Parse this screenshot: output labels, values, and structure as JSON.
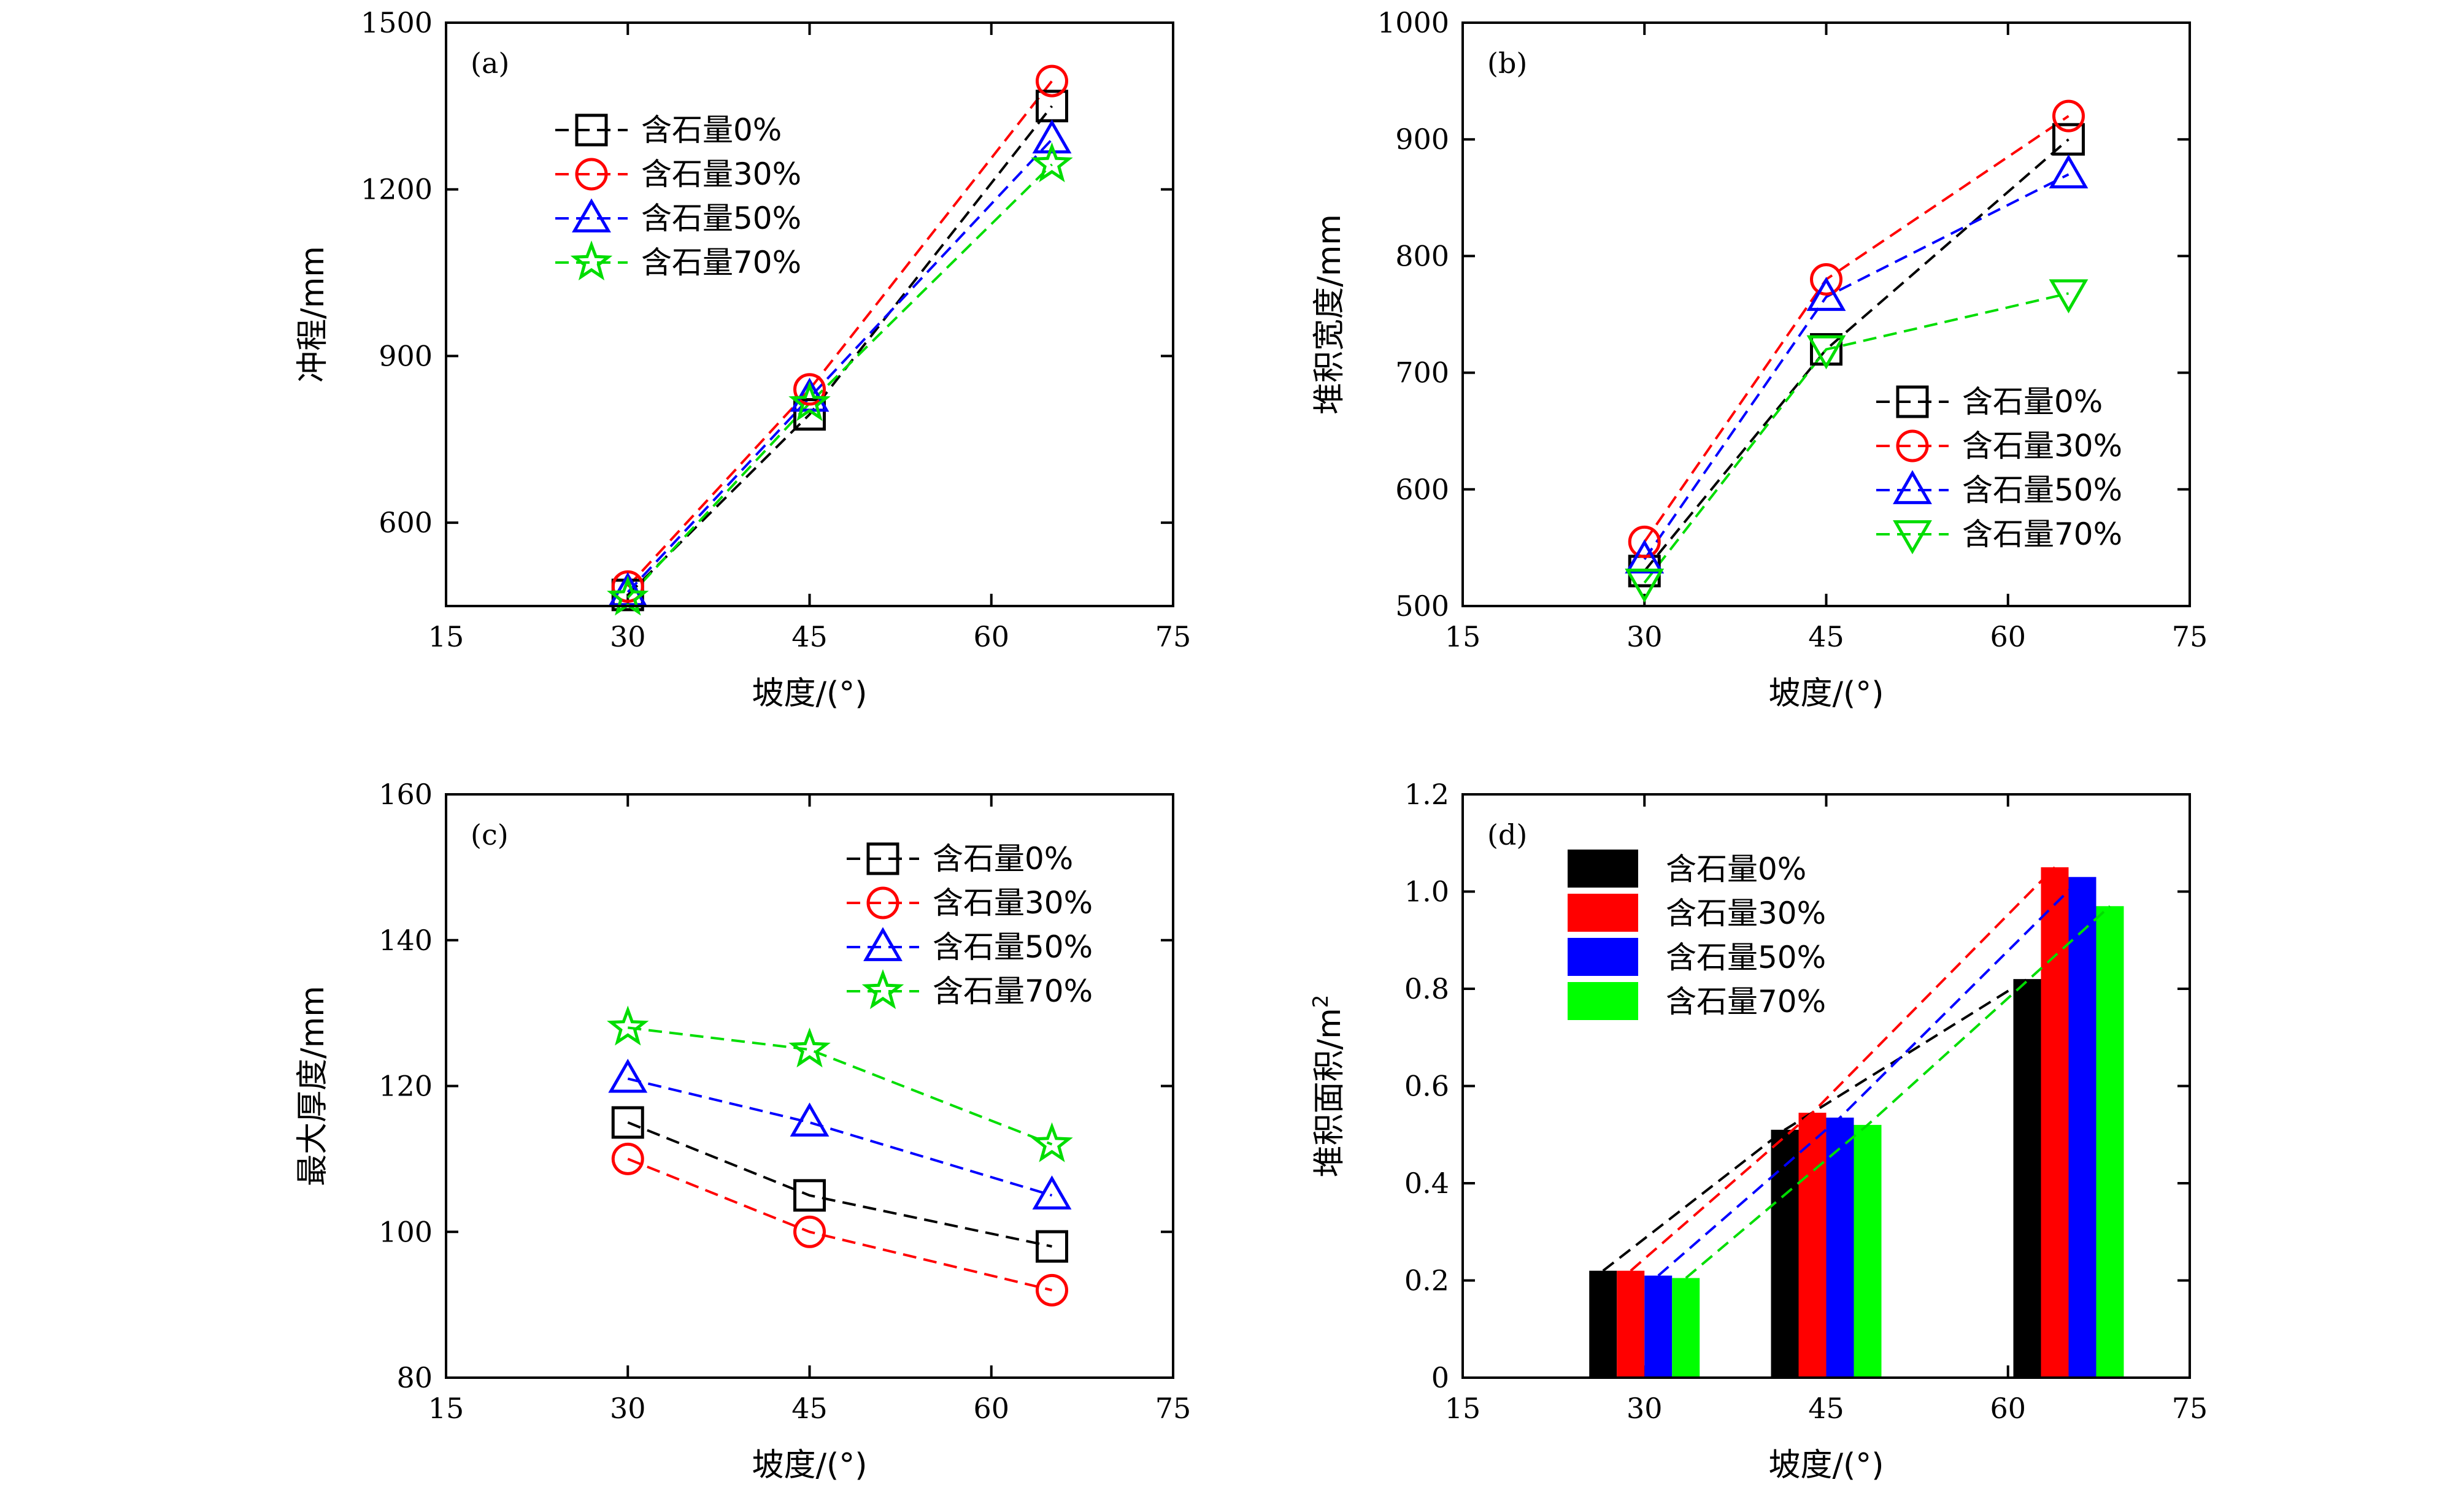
{
  "chart_data": [
    {
      "type": "line",
      "panel_label": "(a)",
      "xlabel": "坡度/(°)",
      "ylabel": "冲程/mm",
      "xlim": [
        15,
        75
      ],
      "ylim": [
        450,
        1500
      ],
      "xticks": [
        15,
        30,
        45,
        60,
        75
      ],
      "yticks": [
        600,
        900,
        1200,
        1500
      ],
      "x": [
        30,
        45,
        65
      ],
      "legend_position": "top-left",
      "series": [
        {
          "name": "含石量0%",
          "marker": "square",
          "color": "#000000",
          "values": [
            470,
            795,
            1350
          ]
        },
        {
          "name": "含石量30%",
          "marker": "circle",
          "color": "#ff0000",
          "values": [
            485,
            840,
            1395
          ]
        },
        {
          "name": "含石量50%",
          "marker": "triangle-up",
          "color": "#0000ff",
          "values": [
            475,
            825,
            1290
          ]
        },
        {
          "name": "含石量70%",
          "marker": "star",
          "color": "#00dd00",
          "values": [
            465,
            815,
            1245
          ]
        }
      ]
    },
    {
      "type": "line",
      "panel_label": "(b)",
      "xlabel": "坡度/(°)",
      "ylabel": "堆积宽度/mm",
      "xlim": [
        15,
        75
      ],
      "ylim": [
        500,
        1000
      ],
      "xticks": [
        15,
        30,
        45,
        60,
        75
      ],
      "yticks": [
        500,
        600,
        700,
        800,
        900,
        1000
      ],
      "x": [
        30,
        45,
        65
      ],
      "legend_position": "bottom-right",
      "series": [
        {
          "name": "含石量0%",
          "marker": "square",
          "color": "#000000",
          "values": [
            530,
            720,
            900
          ]
        },
        {
          "name": "含石量30%",
          "marker": "circle",
          "color": "#ff0000",
          "values": [
            555,
            780,
            920
          ]
        },
        {
          "name": "含石量50%",
          "marker": "triangle-up",
          "color": "#0000ff",
          "values": [
            540,
            765,
            870
          ]
        },
        {
          "name": "含石量70%",
          "marker": "triangle-down",
          "color": "#00dd00",
          "values": [
            520,
            720,
            768
          ]
        }
      ]
    },
    {
      "type": "line",
      "panel_label": "(c)",
      "xlabel": "坡度/(°)",
      "ylabel": "最大厚度/mm",
      "xlim": [
        15,
        75
      ],
      "ylim": [
        80,
        160
      ],
      "xticks": [
        15,
        30,
        45,
        60,
        75
      ],
      "yticks": [
        80,
        100,
        120,
        140,
        160
      ],
      "x": [
        30,
        45,
        65
      ],
      "legend_position": "top-right",
      "series": [
        {
          "name": "含石量0%",
          "marker": "square",
          "color": "#000000",
          "values": [
            115,
            105,
            98
          ]
        },
        {
          "name": "含石量30%",
          "marker": "circle",
          "color": "#ff0000",
          "values": [
            110,
            100,
            92
          ]
        },
        {
          "name": "含石量50%",
          "marker": "triangle-up",
          "color": "#0000ff",
          "values": [
            121,
            115,
            105
          ]
        },
        {
          "name": "含石量70%",
          "marker": "star",
          "color": "#00dd00",
          "values": [
            128,
            125,
            112
          ]
        }
      ]
    },
    {
      "type": "bar",
      "panel_label": "(d)",
      "xlabel": "坡度/(°)",
      "ylabel": "堆积面积/m",
      "ylabel_sup": "2",
      "xlim": [
        15,
        75
      ],
      "ylim": [
        0,
        1.2
      ],
      "xticks": [
        15,
        30,
        45,
        60,
        75
      ],
      "yticks": [
        0,
        0.2,
        0.4,
        0.6,
        0.8,
        1.0,
        1.2
      ],
      "ytick_labels": [
        "0",
        "0.2",
        "0.4",
        "0.6",
        "0.8",
        "1.0",
        "1.2"
      ],
      "x": [
        30,
        45,
        65
      ],
      "legend_position": "top-left",
      "series": [
        {
          "name": "含石量0%",
          "color": "#000000",
          "values": [
            0.22,
            0.51,
            0.82
          ]
        },
        {
          "name": "含石量30%",
          "color": "#ff0000",
          "values": [
            0.22,
            0.545,
            1.05
          ]
        },
        {
          "name": "含石量50%",
          "color": "#0000ff",
          "values": [
            0.21,
            0.535,
            1.03
          ]
        },
        {
          "name": "含石量70%",
          "color": "#00ff00",
          "values": [
            0.205,
            0.52,
            0.97
          ]
        }
      ]
    }
  ]
}
